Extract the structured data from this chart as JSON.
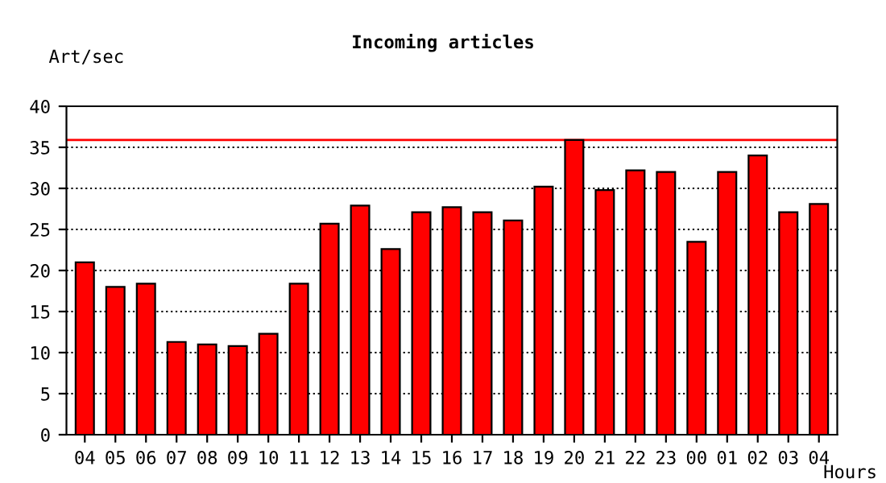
{
  "chart_data": {
    "type": "bar",
    "title": "Incoming articles",
    "ylabel": "Art/sec",
    "xlabel": "Hours",
    "categories": [
      "04",
      "05",
      "06",
      "07",
      "08",
      "09",
      "10",
      "11",
      "12",
      "13",
      "14",
      "15",
      "16",
      "17",
      "18",
      "19",
      "20",
      "21",
      "22",
      "23",
      "00",
      "01",
      "02",
      "03",
      "04"
    ],
    "series": [
      {
        "color": "#ff0000",
        "values": [
          21.0,
          18.0,
          18.4,
          11.3,
          11.0,
          10.8,
          12.3,
          18.4,
          25.7,
          27.9,
          22.6,
          27.1,
          27.7,
          27.1,
          26.1,
          30.2,
          35.9,
          29.8,
          32.2,
          32.0,
          23.5,
          32.0,
          34.0,
          27.1,
          28.1
        ]
      }
    ],
    "ylim": [
      0,
      40
    ],
    "yticks": [
      0,
      5,
      10,
      15,
      20,
      25,
      30,
      35,
      40
    ],
    "grid": "y",
    "line_style": "dotted",
    "ref_lines": [
      {
        "axis": "y",
        "value": 35.9,
        "color": "#ff0000"
      }
    ]
  }
}
